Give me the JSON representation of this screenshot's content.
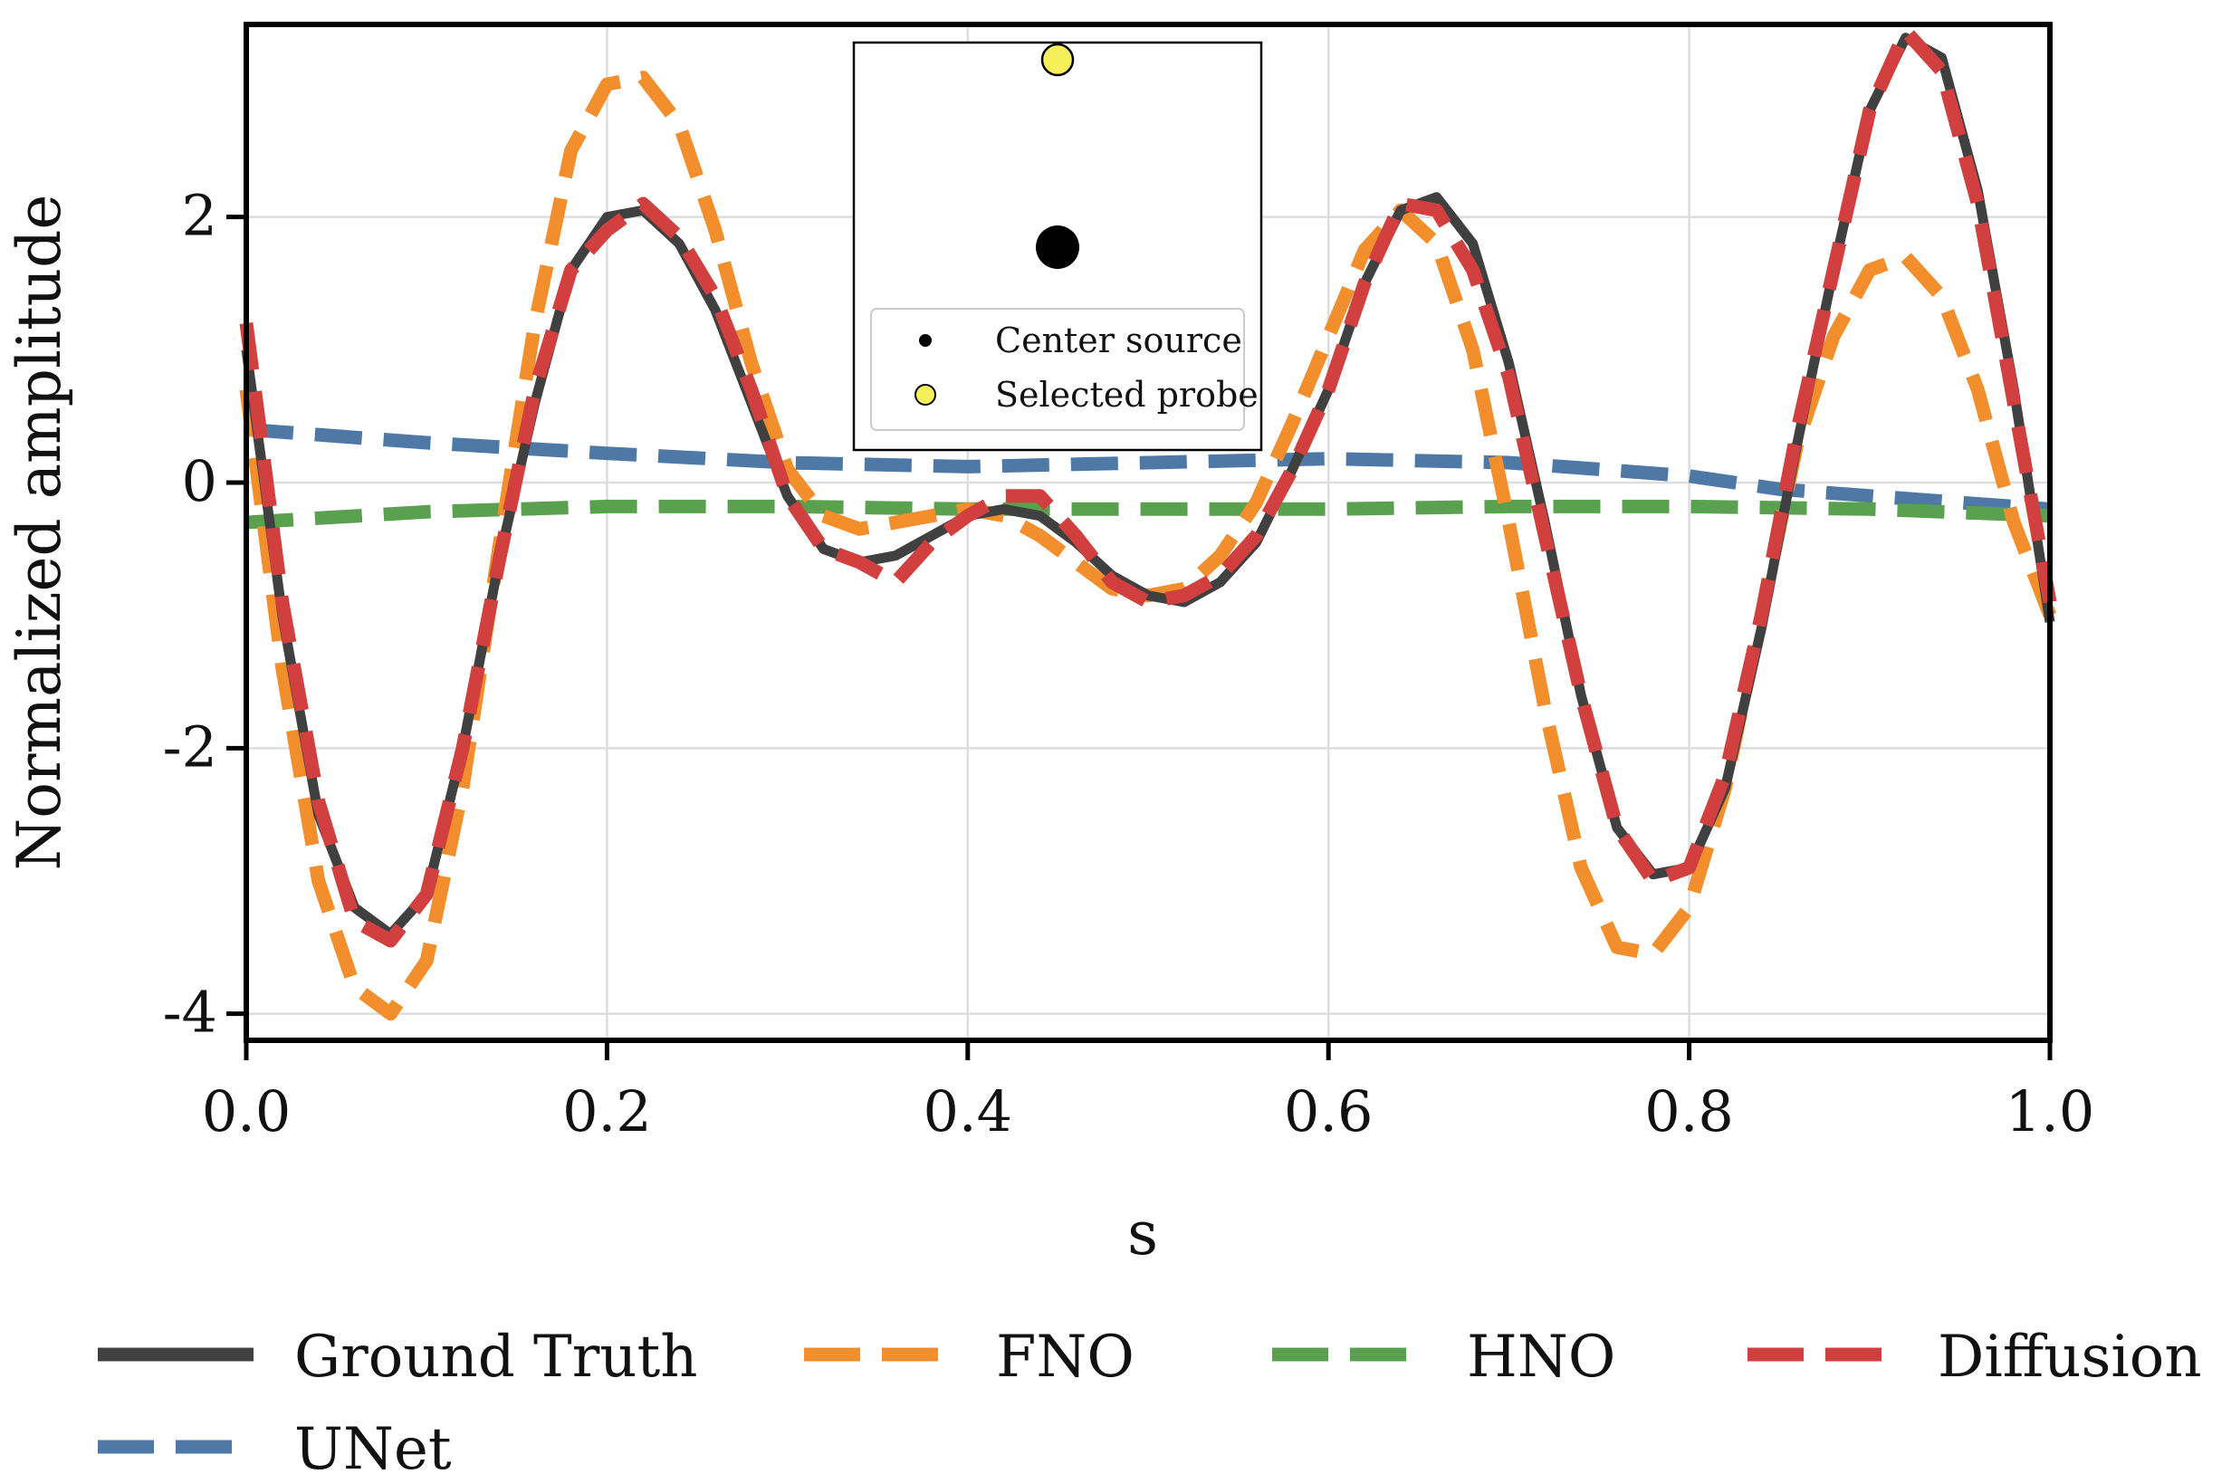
{
  "chart_data": {
    "type": "line",
    "title": "",
    "xlabel": "s",
    "ylabel": "Normalized amplitude",
    "xlim": [
      0.0,
      1.0
    ],
    "ylim": [
      -4.2,
      3.45
    ],
    "xticks": [
      0.0,
      0.2,
      0.4,
      0.6,
      0.8,
      1.0
    ],
    "xtick_labels": [
      "0.0",
      "0.2",
      "0.4",
      "0.6",
      "0.8",
      "1.0"
    ],
    "yticks": [
      -4,
      -2,
      0,
      2
    ],
    "ytick_labels": [
      "-4",
      "-2",
      "0",
      "2"
    ],
    "grid": true,
    "legend_position": "bottom",
    "series": [
      {
        "name": "Ground Truth",
        "color": "#404040",
        "style": "solid",
        "x": [
          0.0,
          0.02,
          0.04,
          0.06,
          0.08,
          0.1,
          0.12,
          0.14,
          0.16,
          0.18,
          0.2,
          0.22,
          0.24,
          0.26,
          0.28,
          0.3,
          0.32,
          0.34,
          0.36,
          0.38,
          0.4,
          0.42,
          0.44,
          0.46,
          0.48,
          0.5,
          0.52,
          0.54,
          0.56,
          0.58,
          0.6,
          0.62,
          0.64,
          0.66,
          0.68,
          0.7,
          0.72,
          0.74,
          0.76,
          0.78,
          0.8,
          0.82,
          0.84,
          0.86,
          0.88,
          0.9,
          0.92,
          0.94,
          0.96,
          0.98,
          1.0
        ],
        "values": [
          1.0,
          -1.0,
          -2.5,
          -3.2,
          -3.4,
          -3.1,
          -2.0,
          -0.6,
          0.6,
          1.6,
          2.0,
          2.05,
          1.8,
          1.3,
          0.6,
          -0.1,
          -0.5,
          -0.6,
          -0.55,
          -0.4,
          -0.25,
          -0.2,
          -0.25,
          -0.45,
          -0.7,
          -0.85,
          -0.9,
          -0.75,
          -0.45,
          0.1,
          0.7,
          1.5,
          2.05,
          2.15,
          1.8,
          0.9,
          -0.3,
          -1.6,
          -2.6,
          -2.95,
          -2.9,
          -2.3,
          -1.1,
          0.3,
          1.6,
          2.8,
          3.35,
          3.2,
          2.2,
          0.7,
          -1.05
        ]
      },
      {
        "name": "FNO",
        "color": "#f28e2b",
        "style": "dashed",
        "x": [
          0.0,
          0.02,
          0.04,
          0.06,
          0.08,
          0.1,
          0.12,
          0.14,
          0.16,
          0.18,
          0.2,
          0.22,
          0.24,
          0.26,
          0.28,
          0.3,
          0.32,
          0.34,
          0.36,
          0.38,
          0.4,
          0.42,
          0.44,
          0.46,
          0.48,
          0.5,
          0.52,
          0.54,
          0.56,
          0.58,
          0.6,
          0.62,
          0.64,
          0.66,
          0.68,
          0.7,
          0.72,
          0.74,
          0.76,
          0.78,
          0.8,
          0.82,
          0.84,
          0.86,
          0.88,
          0.9,
          0.92,
          0.94,
          0.96,
          0.98,
          1.0
        ],
        "values": [
          0.7,
          -1.4,
          -3.0,
          -3.8,
          -4.0,
          -3.6,
          -2.3,
          -0.5,
          1.2,
          2.5,
          3.0,
          3.05,
          2.7,
          1.9,
          0.9,
          0.1,
          -0.25,
          -0.35,
          -0.3,
          -0.25,
          -0.2,
          -0.25,
          -0.4,
          -0.6,
          -0.8,
          -0.85,
          -0.8,
          -0.55,
          -0.15,
          0.45,
          1.1,
          1.75,
          2.05,
          1.8,
          1.0,
          -0.3,
          -1.7,
          -2.9,
          -3.5,
          -3.55,
          -3.2,
          -2.3,
          -1.0,
          0.3,
          1.1,
          1.6,
          1.7,
          1.4,
          0.7,
          -0.3,
          -1.0
        ]
      },
      {
        "name": "HNO",
        "color": "#59a14f",
        "style": "dashed",
        "x": [
          0.0,
          0.1,
          0.2,
          0.3,
          0.4,
          0.5,
          0.6,
          0.7,
          0.8,
          0.9,
          1.0
        ],
        "values": [
          -0.3,
          -0.22,
          -0.18,
          -0.18,
          -0.2,
          -0.2,
          -0.2,
          -0.18,
          -0.18,
          -0.2,
          -0.25
        ]
      },
      {
        "name": "Diffusion",
        "color": "#d13f3f",
        "style": "dashed",
        "x": [
          0.0,
          0.02,
          0.04,
          0.06,
          0.08,
          0.1,
          0.12,
          0.14,
          0.16,
          0.18,
          0.2,
          0.22,
          0.24,
          0.26,
          0.28,
          0.3,
          0.32,
          0.34,
          0.36,
          0.38,
          0.4,
          0.42,
          0.44,
          0.46,
          0.48,
          0.5,
          0.52,
          0.54,
          0.56,
          0.58,
          0.6,
          0.62,
          0.64,
          0.66,
          0.68,
          0.7,
          0.72,
          0.74,
          0.76,
          0.78,
          0.8,
          0.82,
          0.84,
          0.86,
          0.88,
          0.9,
          0.92,
          0.94,
          0.96,
          0.98,
          1.0
        ],
        "values": [
          1.2,
          -0.9,
          -2.4,
          -3.3,
          -3.45,
          -3.1,
          -2.0,
          -0.6,
          0.7,
          1.6,
          1.9,
          2.1,
          1.85,
          1.4,
          0.7,
          -0.1,
          -0.5,
          -0.6,
          -0.75,
          -0.45,
          -0.25,
          -0.1,
          -0.1,
          -0.4,
          -0.75,
          -0.9,
          -0.85,
          -0.7,
          -0.4,
          0.1,
          0.7,
          1.5,
          2.1,
          2.05,
          1.6,
          0.8,
          -0.4,
          -1.6,
          -2.6,
          -3.0,
          -2.9,
          -2.2,
          -1.0,
          0.4,
          1.6,
          2.8,
          3.4,
          3.1,
          2.1,
          0.6,
          -0.9
        ]
      },
      {
        "name": "UNet",
        "color": "#4e79a7",
        "style": "dashed",
        "x": [
          0.0,
          0.1,
          0.2,
          0.3,
          0.4,
          0.5,
          0.6,
          0.7,
          0.8,
          0.85,
          0.9,
          0.95,
          1.0
        ],
        "values": [
          0.4,
          0.3,
          0.22,
          0.15,
          0.12,
          0.15,
          0.18,
          0.15,
          0.05,
          -0.05,
          -0.1,
          -0.15,
          -0.2
        ]
      }
    ]
  },
  "inset": {
    "legend": [
      {
        "label": "Center source",
        "color": "#000000"
      },
      {
        "label": "Selected probe",
        "color": "#f5f05a"
      }
    ]
  }
}
